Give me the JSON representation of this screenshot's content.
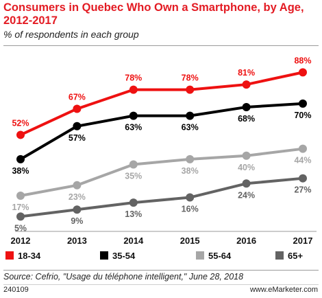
{
  "title": "Consumers in Quebec Who Own a Smartphone, by Age, 2012-2017",
  "subtitle": "% of respondents in each group",
  "source": "Source: Cefrio, \"Usage du téléphone intelligent,\" June 28, 2018",
  "chart_id": "240109",
  "brand": "www.eMarketer.com",
  "chart_data": {
    "type": "line",
    "title": "Consumers in Quebec Who Own a Smartphone, by Age, 2012-2017",
    "subtitle": "% of respondents in each group",
    "categories": [
      "2012",
      "2013",
      "2014",
      "2015",
      "2016",
      "2017"
    ],
    "ylim": [
      0,
      100
    ],
    "grid": false,
    "legend_position": "bottom",
    "series": [
      {
        "name": "18-34",
        "color": "#ee1111",
        "values": [
          52,
          67,
          78,
          78,
          81,
          88
        ],
        "labels": [
          "52%",
          "67%",
          "78%",
          "78%",
          "81%",
          "88%"
        ],
        "label_position": "above"
      },
      {
        "name": "35-54",
        "color": "#000000",
        "values": [
          38,
          57,
          63,
          63,
          68,
          70
        ],
        "labels": [
          "38%",
          "57%",
          "63%",
          "63%",
          "68%",
          "70%"
        ],
        "label_position": "below"
      },
      {
        "name": "55-64",
        "color": "#a6a6a6",
        "values": [
          17,
          23,
          35,
          38,
          40,
          44
        ],
        "labels": [
          "17%",
          "23%",
          "35%",
          "38%",
          "40%",
          "44%"
        ],
        "label_position": "below"
      },
      {
        "name": "65+",
        "color": "#636363",
        "values": [
          5,
          9,
          13,
          16,
          24,
          27
        ],
        "labels": [
          "5%",
          "9%",
          "13%",
          "16%",
          "24%",
          "27%"
        ],
        "label_position": "below"
      }
    ]
  }
}
